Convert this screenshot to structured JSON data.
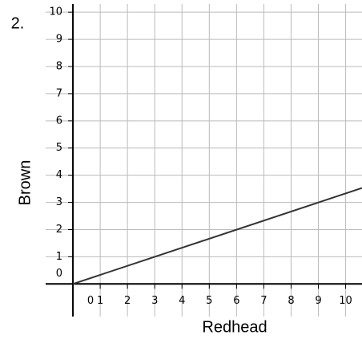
{
  "chart_data": {
    "type": "line",
    "label": "2.",
    "xlabel": "Redhead",
    "ylabel": "Brown",
    "x": [
      0,
      10.6
    ],
    "series": [
      {
        "name": null,
        "color": "#333333",
        "values": [
          0,
          3.53
        ]
      }
    ],
    "xlim": [
      -1,
      10.6
    ],
    "ylim": [
      -1.2,
      10.3
    ],
    "xticks": [
      0,
      1,
      2,
      3,
      4,
      5,
      6,
      7,
      8,
      9,
      10
    ],
    "yticks": [
      0,
      1,
      2,
      3,
      4,
      5,
      6,
      7,
      8,
      9,
      10
    ],
    "grid": true
  }
}
